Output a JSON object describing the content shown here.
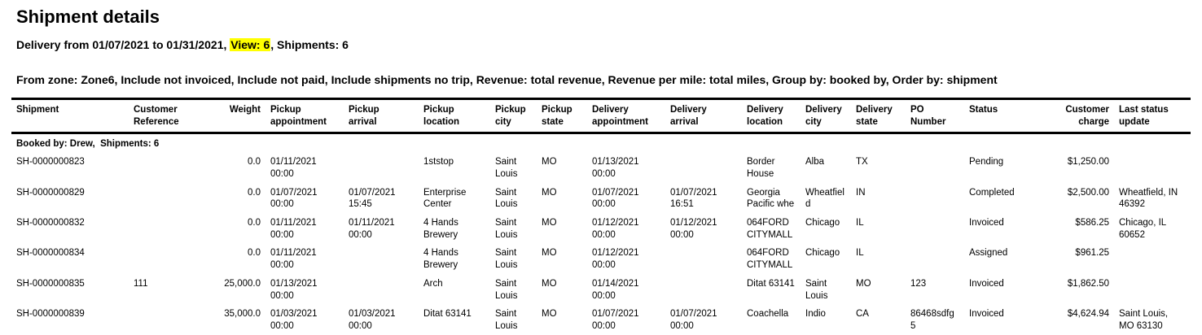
{
  "page": {
    "title": "Shipment details",
    "subtitle": {
      "prefix": "Delivery from 01/07/2021 to 01/31/2021, ",
      "highlight": "View: 6",
      "suffix": ", Shipments: 6"
    },
    "filters": "From zone: Zone6, Include not invoiced, Include not paid, Include shipments no trip, Revenue: total revenue, Revenue per mile: total miles, Group by: booked by, Order by: shipment",
    "highlight_color": "#ffff00"
  },
  "table": {
    "columns": [
      {
        "id": "shipment",
        "label": "Shipment",
        "align": "left"
      },
      {
        "id": "customer-reference",
        "label": "Customer\nReference",
        "align": "left"
      },
      {
        "id": "weight",
        "label": "Weight",
        "align": "right"
      },
      {
        "id": "pickup-appointment",
        "label": "Pickup\nappointment",
        "align": "left"
      },
      {
        "id": "pickup-arrival",
        "label": "Pickup\narrival",
        "align": "left"
      },
      {
        "id": "pickup-location",
        "label": "Pickup\nlocation",
        "align": "left"
      },
      {
        "id": "pickup-city",
        "label": "Pickup\ncity",
        "align": "left"
      },
      {
        "id": "pickup-state",
        "label": "Pickup\nstate",
        "align": "left"
      },
      {
        "id": "delivery-appointment",
        "label": "Delivery\nappointment",
        "align": "left"
      },
      {
        "id": "delivery-arrival",
        "label": "Delivery\narrival",
        "align": "left"
      },
      {
        "id": "delivery-location",
        "label": "Delivery\nlocation",
        "align": "left"
      },
      {
        "id": "delivery-city",
        "label": "Delivery\ncity",
        "align": "left"
      },
      {
        "id": "delivery-state",
        "label": "Delivery\nstate",
        "align": "left"
      },
      {
        "id": "po-number",
        "label": "PO\nNumber",
        "align": "left"
      },
      {
        "id": "status",
        "label": "Status",
        "align": "left"
      },
      {
        "id": "customer-charge",
        "label": "Customer\ncharge",
        "align": "right"
      },
      {
        "id": "last-status-update",
        "label": "Last status\nupdate",
        "align": "left"
      }
    ],
    "group_header": "Booked by: Drew,  Shipments: 6",
    "rows": [
      [
        "SH-0000000823",
        "",
        "0.0",
        "01/11/2021 00:00",
        "",
        "1ststop",
        "Saint Louis",
        "MO",
        "01/13/2021 00:00",
        "",
        "Border House",
        "Alba",
        "TX",
        "",
        "Pending",
        "$1,250.00",
        ""
      ],
      [
        "SH-0000000829",
        "",
        "0.0",
        "01/07/2021 00:00",
        "01/07/2021 15:45",
        "Enterprise Center",
        "Saint Louis",
        "MO",
        "01/07/2021 00:00",
        "01/07/2021 16:51",
        "Georgia Pacific whe",
        "Wheatfield",
        "IN",
        "",
        "Completed",
        "$2,500.00",
        "Wheatfield, IN 46392"
      ],
      [
        "SH-0000000832",
        "",
        "0.0",
        "01/11/2021 00:00",
        "01/11/2021 00:00",
        "4 Hands Brewery",
        "Saint Louis",
        "MO",
        "01/12/2021 00:00",
        "01/12/2021 00:00",
        "064FORDCITYMALL",
        "Chicago",
        "IL",
        "",
        "Invoiced",
        "$586.25",
        "Chicago, IL 60652"
      ],
      [
        "SH-0000000834",
        "",
        "0.0",
        "01/11/2021 00:00",
        "",
        "4 Hands Brewery",
        "Saint Louis",
        "MO",
        "01/12/2021 00:00",
        "",
        "064FORDCITYMALL",
        "Chicago",
        "IL",
        "",
        "Assigned",
        "$961.25",
        ""
      ],
      [
        "SH-0000000835",
        "111",
        "25,000.0",
        "01/13/2021 00:00",
        "",
        "Arch",
        "Saint Louis",
        "MO",
        "01/14/2021 00:00",
        "",
        "Ditat 63141",
        "Saint Louis",
        "MO",
        "123",
        "Invoiced",
        "$1,862.50",
        ""
      ],
      [
        "SH-0000000839",
        "",
        "35,000.0",
        "01/03/2021 00:00",
        "01/03/2021 00:00",
        "Ditat 63141",
        "Saint Louis",
        "MO",
        "01/07/2021 00:00",
        "01/07/2021 00:00",
        "Coachella",
        "Indio",
        "CA",
        "86468sdfg5",
        "Invoiced",
        "$4,624.94",
        "Saint Louis, MO 63130"
      ]
    ]
  }
}
